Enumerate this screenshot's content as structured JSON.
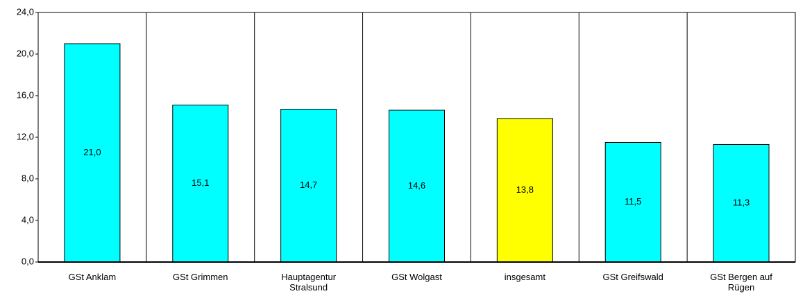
{
  "chart_data": {
    "type": "bar",
    "categories": [
      "GSt Anklam",
      "GSt Grimmen",
      "Hauptagentur Stralsund",
      "GSt Wolgast",
      "insgesamt",
      "GSt Greifswald",
      "GSt Bergen auf Rügen"
    ],
    "values": [
      21.0,
      15.1,
      14.7,
      14.6,
      13.8,
      11.5,
      11.3
    ],
    "value_labels": [
      "21,0",
      "15,1",
      "14,7",
      "14,6",
      "13,8",
      "11,5",
      "11,3"
    ],
    "colors": [
      "#00ffff",
      "#00ffff",
      "#00ffff",
      "#00ffff",
      "#ffff00",
      "#00ffff",
      "#00ffff"
    ],
    "ylim": [
      0,
      24
    ],
    "yticks": [
      {
        "value": 0,
        "label": "0,0"
      },
      {
        "value": 4,
        "label": "4,0"
      },
      {
        "value": 8,
        "label": "8,0"
      },
      {
        "value": 12,
        "label": "12,0"
      },
      {
        "value": 16,
        "label": "16,0"
      },
      {
        "value": 20,
        "label": "20,0"
      },
      {
        "value": 24,
        "label": "24,0"
      }
    ],
    "grid": false
  }
}
